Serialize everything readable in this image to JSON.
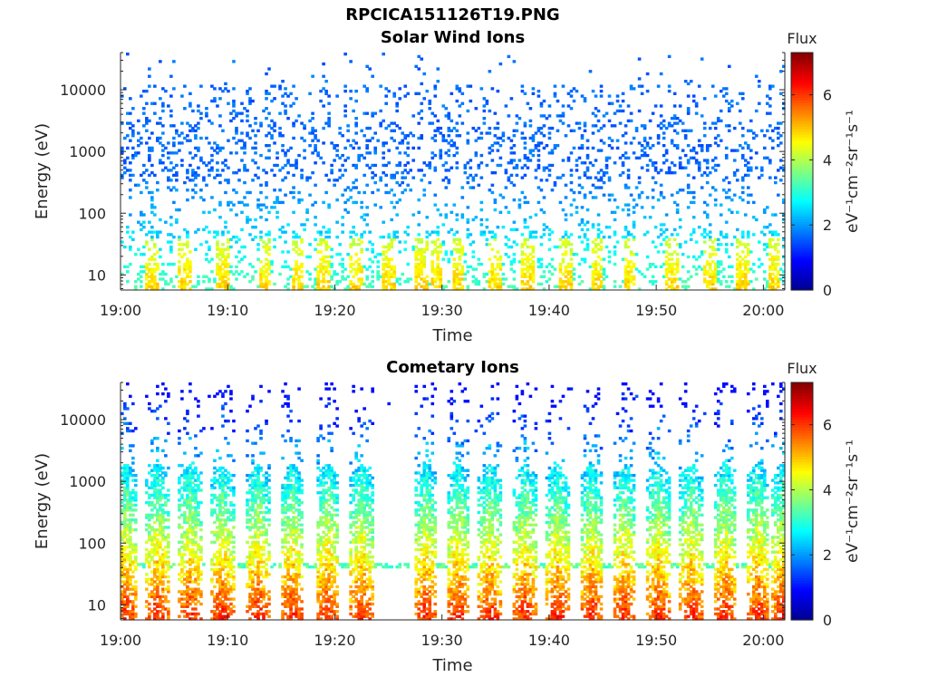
{
  "figure_title": "RPCICA151126T19.PNG",
  "colormap": [
    "#00008f",
    "#0000ff",
    "#0080ff",
    "#00ffff",
    "#80ff80",
    "#ffff00",
    "#ff8000",
    "#ff0000",
    "#800000"
  ],
  "chart_data": [
    {
      "type": "heatmap",
      "title": "Solar Wind Ions",
      "xlabel": "Time",
      "ylabel": "Energy (eV)",
      "x_ticks": [
        "19:00",
        "19:10",
        "19:20",
        "19:30",
        "19:40",
        "19:50",
        "20:00"
      ],
      "x_range": [
        "19:00",
        "20:02"
      ],
      "y_scale": "log",
      "y_ticks": [
        "10",
        "100",
        "1000",
        "10000"
      ],
      "y_range": [
        5.7,
        40000
      ],
      "colorbar": {
        "label": "Flux",
        "unit": "eV⁻¹cm⁻²sr⁻¹s⁻¹",
        "ticks": [
          "0",
          "2",
          "4",
          "6"
        ],
        "range": [
          0,
          7.3
        ]
      },
      "pattern": "sparse",
      "bursts_min": [
        3,
        6,
        9.5,
        13.5,
        16.5,
        19,
        22,
        25,
        28,
        29.5,
        31.5,
        35,
        38,
        41.5,
        44.5,
        47.5,
        51.5,
        55,
        58,
        61
      ]
    },
    {
      "type": "heatmap",
      "title": "Cometary Ions",
      "xlabel": "Time",
      "ylabel": "Energy (eV)",
      "x_ticks": [
        "19:00",
        "19:10",
        "19:20",
        "19:30",
        "19:40",
        "19:50",
        "20:00"
      ],
      "x_range": [
        "19:00",
        "20:02"
      ],
      "y_scale": "log",
      "y_ticks": [
        "10",
        "100",
        "1000",
        "10000"
      ],
      "y_range": [
        5.7,
        40000
      ],
      "colorbar": {
        "label": "Flux",
        "unit": "eV⁻¹cm⁻²sr⁻¹s⁻¹",
        "ticks": [
          "0",
          "2",
          "4",
          "6"
        ],
        "range": [
          0,
          7.3
        ]
      },
      "pattern": "bursts",
      "bursts_min": [
        0.5,
        3.5,
        6.5,
        9.5,
        12.8,
        16,
        19.3,
        22.5,
        28.5,
        31.5,
        34.5,
        37.8,
        40.8,
        44,
        47,
        50.2,
        53.3,
        56.4,
        59.5,
        61.8
      ]
    }
  ]
}
